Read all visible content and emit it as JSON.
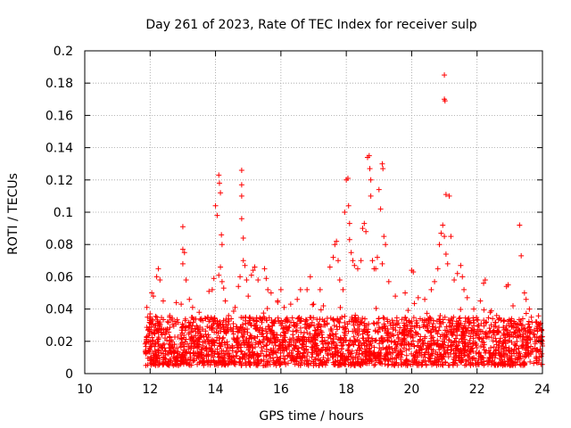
{
  "chart_data": {
    "type": "scatter",
    "title": "Day 261 of 2023, Rate Of TEC Index for receiver sulp",
    "xlabel": "GPS time / hours",
    "ylabel": "ROTI / TECUs",
    "xlim": [
      10,
      24
    ],
    "ylim": [
      0,
      0.2
    ],
    "xticks": [
      "10",
      "12",
      "14",
      "16",
      "18",
      "20",
      "22",
      "24"
    ],
    "yticks": [
      "0",
      "0.02",
      "0.04",
      "0.06",
      "0.08",
      "0.1",
      "0.12",
      "0.14",
      "0.16",
      "0.18",
      "0.2"
    ],
    "grid": true,
    "series": [
      {
        "name": "sulp",
        "marker": "+",
        "color": "#ff0000",
        "x_start": 11.85,
        "x_end": 24.0,
        "dense_band": {
          "min": 0.005,
          "max": 0.035
        },
        "points": [
          [
            11.9,
            0.041
          ],
          [
            12.0,
            0.037
          ],
          [
            12.05,
            0.05
          ],
          [
            12.1,
            0.048
          ],
          [
            12.2,
            0.06
          ],
          [
            12.25,
            0.065
          ],
          [
            12.3,
            0.058
          ],
          [
            12.4,
            0.045
          ],
          [
            12.6,
            0.036
          ],
          [
            12.8,
            0.044
          ],
          [
            12.95,
            0.043
          ],
          [
            13.0,
            0.091
          ],
          [
            13.0,
            0.077
          ],
          [
            13.0,
            0.068
          ],
          [
            13.05,
            0.075
          ],
          [
            13.1,
            0.058
          ],
          [
            13.2,
            0.046
          ],
          [
            13.3,
            0.041
          ],
          [
            13.5,
            0.038
          ],
          [
            13.7,
            0.034
          ],
          [
            13.8,
            0.051
          ],
          [
            13.9,
            0.052
          ],
          [
            13.95,
            0.059
          ],
          [
            14.0,
            0.104
          ],
          [
            14.05,
            0.098
          ],
          [
            14.1,
            0.123
          ],
          [
            14.12,
            0.118
          ],
          [
            14.15,
            0.112
          ],
          [
            14.18,
            0.086
          ],
          [
            14.2,
            0.08
          ],
          [
            14.15,
            0.066
          ],
          [
            14.1,
            0.061
          ],
          [
            14.2,
            0.057
          ],
          [
            14.25,
            0.053
          ],
          [
            14.3,
            0.045
          ],
          [
            14.4,
            0.036
          ],
          [
            14.6,
            0.041
          ],
          [
            14.7,
            0.054
          ],
          [
            14.75,
            0.06
          ],
          [
            14.8,
            0.126
          ],
          [
            14.8,
            0.117
          ],
          [
            14.8,
            0.11
          ],
          [
            14.8,
            0.096
          ],
          [
            14.85,
            0.084
          ],
          [
            14.85,
            0.07
          ],
          [
            14.9,
            0.067
          ],
          [
            14.95,
            0.058
          ],
          [
            15.0,
            0.048
          ],
          [
            15.1,
            0.061
          ],
          [
            15.15,
            0.064
          ],
          [
            15.2,
            0.066
          ],
          [
            15.3,
            0.058
          ],
          [
            15.5,
            0.065
          ],
          [
            15.55,
            0.059
          ],
          [
            15.6,
            0.052
          ],
          [
            15.7,
            0.05
          ],
          [
            15.9,
            0.045
          ],
          [
            16.0,
            0.052
          ],
          [
            16.1,
            0.041
          ],
          [
            16.3,
            0.043
          ],
          [
            16.5,
            0.046
          ],
          [
            16.6,
            0.052
          ],
          [
            16.8,
            0.052
          ],
          [
            16.9,
            0.06
          ],
          [
            17.0,
            0.043
          ],
          [
            17.2,
            0.052
          ],
          [
            17.3,
            0.042
          ],
          [
            17.5,
            0.066
          ],
          [
            17.6,
            0.072
          ],
          [
            17.65,
            0.08
          ],
          [
            17.7,
            0.082
          ],
          [
            17.75,
            0.07
          ],
          [
            17.8,
            0.058
          ],
          [
            17.9,
            0.052
          ],
          [
            17.95,
            0.1
          ],
          [
            18.0,
            0.12
          ],
          [
            18.05,
            0.121
          ],
          [
            18.07,
            0.104
          ],
          [
            18.1,
            0.093
          ],
          [
            18.1,
            0.083
          ],
          [
            18.15,
            0.075
          ],
          [
            18.2,
            0.07
          ],
          [
            18.25,
            0.067
          ],
          [
            18.35,
            0.065
          ],
          [
            18.45,
            0.07
          ],
          [
            18.5,
            0.09
          ],
          [
            18.55,
            0.093
          ],
          [
            18.6,
            0.088
          ],
          [
            18.65,
            0.134
          ],
          [
            18.7,
            0.135
          ],
          [
            18.72,
            0.127
          ],
          [
            18.75,
            0.12
          ],
          [
            18.75,
            0.11
          ],
          [
            18.8,
            0.07
          ],
          [
            18.85,
            0.065
          ],
          [
            18.9,
            0.065
          ],
          [
            18.95,
            0.072
          ],
          [
            19.0,
            0.114
          ],
          [
            19.05,
            0.102
          ],
          [
            19.1,
            0.13
          ],
          [
            19.12,
            0.127
          ],
          [
            19.15,
            0.085
          ],
          [
            19.2,
            0.08
          ],
          [
            19.1,
            0.068
          ],
          [
            19.3,
            0.057
          ],
          [
            19.5,
            0.048
          ],
          [
            19.8,
            0.05
          ],
          [
            20.0,
            0.064
          ],
          [
            20.05,
            0.063
          ],
          [
            20.2,
            0.047
          ],
          [
            20.4,
            0.046
          ],
          [
            20.6,
            0.052
          ],
          [
            20.7,
            0.057
          ],
          [
            20.8,
            0.065
          ],
          [
            20.85,
            0.08
          ],
          [
            20.9,
            0.087
          ],
          [
            20.95,
            0.092
          ],
          [
            21.0,
            0.17
          ],
          [
            21.0,
            0.185
          ],
          [
            21.02,
            0.169
          ],
          [
            21.05,
            0.111
          ],
          [
            21.15,
            0.11
          ],
          [
            21.0,
            0.085
          ],
          [
            21.05,
            0.074
          ],
          [
            21.2,
            0.085
          ],
          [
            21.1,
            0.068
          ],
          [
            21.3,
            0.058
          ],
          [
            21.4,
            0.062
          ],
          [
            21.5,
            0.067
          ],
          [
            21.55,
            0.06
          ],
          [
            21.6,
            0.052
          ],
          [
            21.7,
            0.047
          ],
          [
            21.9,
            0.04
          ],
          [
            22.1,
            0.045
          ],
          [
            22.2,
            0.056
          ],
          [
            22.25,
            0.058
          ],
          [
            22.4,
            0.038
          ],
          [
            22.6,
            0.036
          ],
          [
            22.9,
            0.054
          ],
          [
            22.95,
            0.055
          ],
          [
            23.1,
            0.042
          ],
          [
            23.3,
            0.092
          ],
          [
            23.35,
            0.073
          ],
          [
            23.45,
            0.05
          ],
          [
            23.5,
            0.046
          ],
          [
            23.6,
            0.04
          ],
          [
            23.8,
            0.032
          ],
          [
            23.9,
            0.03
          ]
        ]
      }
    ]
  }
}
